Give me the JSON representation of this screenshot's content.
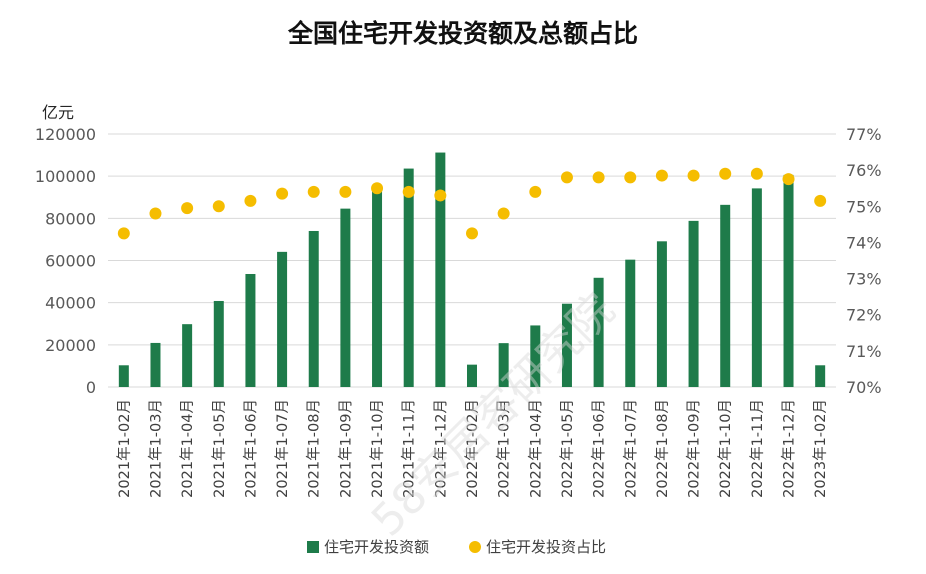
{
  "chart_data": {
    "type": "bar+scatter",
    "title": "全国住宅开发投资额及总额占比",
    "y_left_label": "亿元",
    "y_left_range": [
      0,
      120000
    ],
    "y_left_ticks": [
      "0",
      "20000",
      "40000",
      "60000",
      "80000",
      "100000",
      "120000"
    ],
    "y_right_range": [
      70,
      77
    ],
    "y_right_ticks": [
      "70%",
      "71%",
      "72%",
      "73%",
      "74%",
      "75%",
      "76%",
      "77%"
    ],
    "grid": true,
    "legend_position": "bottom",
    "categories": [
      "2021年1-02月",
      "2021年1-03月",
      "2021年1-04月",
      "2021年1-05月",
      "2021年1-06月",
      "2021年1-07月",
      "2021年1-08月",
      "2021年1-09月",
      "2021年1-10月",
      "2021年1-11月",
      "2021年1-12月",
      "2022年1-02月",
      "2022年1-03月",
      "2022年1-04月",
      "2022年1-05月",
      "2022年1-06月",
      "2022年1-07月",
      "2022年1-08月",
      "2022年1-09月",
      "2022年1-10月",
      "2022年1-11月",
      "2022年1-12月",
      "2023年1-02月"
    ],
    "series": [
      {
        "name": "住宅开发投资额",
        "kind": "bar",
        "axis": "left",
        "color": "#1e7b4a",
        "values": [
          10300,
          20900,
          29800,
          40800,
          53600,
          64100,
          74000,
          84600,
          95300,
          103600,
          111200,
          10600,
          20800,
          29200,
          39500,
          51800,
          60400,
          69100,
          78800,
          86400,
          94200,
          100600,
          10300
        ]
      },
      {
        "name": "住宅开发投资占比",
        "kind": "scatter",
        "axis": "right",
        "color": "#f5bd00",
        "values": [
          74.25,
          74.8,
          74.95,
          75.0,
          75.15,
          75.35,
          75.4,
          75.4,
          75.5,
          75.4,
          75.3,
          74.25,
          74.8,
          75.4,
          75.8,
          75.8,
          75.8,
          75.85,
          75.85,
          75.9,
          75.9,
          75.75,
          75.15
        ]
      }
    ]
  },
  "watermark_text": "58安居客研究院"
}
